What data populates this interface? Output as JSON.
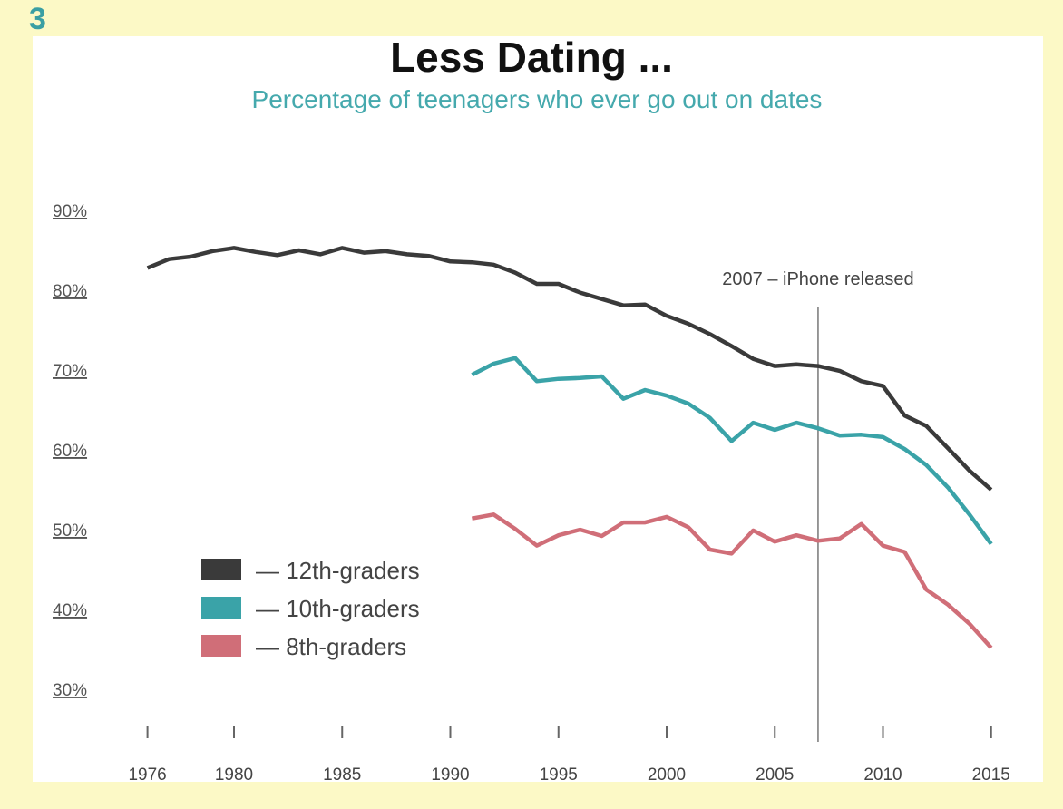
{
  "figure_number": "3",
  "chart_data": {
    "type": "line",
    "title": "Less Dating ...",
    "subtitle": "Percentage of teenagers who ever go out on dates",
    "xlabel": "",
    "ylabel": "",
    "ylim": [
      30,
      90
    ],
    "xlim": [
      1976,
      2015
    ],
    "y_ticks": [
      "90%",
      "80%",
      "70%",
      "60%",
      "50%",
      "40%",
      "30%"
    ],
    "y_tick_values": [
      90,
      80,
      70,
      60,
      50,
      40,
      30
    ],
    "x_ticks": [
      "1976",
      "1980",
      "1985",
      "1990",
      "1995",
      "2000",
      "2005",
      "2010",
      "2015"
    ],
    "grid": false,
    "legend_position": "bottom-left",
    "annotation": {
      "x": 2007,
      "label": "2007 – iPhone released"
    },
    "series": [
      {
        "name": "— 12th-graders",
        "color": "#3a3a3a",
        "x": [
          1976,
          1977,
          1978,
          1979,
          1980,
          1981,
          1982,
          1983,
          1984,
          1985,
          1986,
          1987,
          1988,
          1989,
          1990,
          1991,
          1992,
          1993,
          1994,
          1995,
          1996,
          1997,
          1998,
          1999,
          2000,
          2001,
          2002,
          2003,
          2004,
          2005,
          2006,
          2007,
          2008,
          2009,
          2010,
          2011,
          2012,
          2013,
          2014,
          2015
        ],
        "values": [
          82.8,
          83.9,
          84.2,
          84.9,
          85.3,
          84.8,
          84.4,
          85.0,
          84.5,
          85.3,
          84.7,
          84.9,
          84.5,
          84.3,
          83.6,
          83.5,
          83.2,
          82.2,
          80.8,
          80.8,
          79.7,
          78.9,
          78.1,
          78.2,
          76.8,
          75.8,
          74.5,
          73.0,
          71.4,
          70.5,
          70.7,
          70.5,
          69.9,
          68.6,
          68.0,
          64.3,
          63.0,
          60.2,
          57.4,
          55.0
        ]
      },
      {
        "name": "— 10th-graders",
        "color": "#3aa3a8",
        "x": [
          1991,
          1992,
          1993,
          1994,
          1995,
          1996,
          1997,
          1998,
          1999,
          2000,
          2001,
          2002,
          2003,
          2004,
          2005,
          2006,
          2007,
          2008,
          2009,
          2010,
          2011,
          2012,
          2013,
          2014,
          2015
        ],
        "values": [
          69.4,
          70.8,
          71.5,
          68.6,
          68.9,
          69.0,
          69.2,
          66.4,
          67.5,
          66.8,
          65.8,
          64.0,
          61.1,
          63.4,
          62.5,
          63.4,
          62.7,
          61.8,
          61.9,
          61.6,
          60.1,
          58.1,
          55.3,
          51.9,
          48.2
        ]
      },
      {
        "name": "— 8th-graders",
        "color": "#d06e78",
        "x": [
          1991,
          1992,
          1993,
          1994,
          1995,
          1996,
          1997,
          1998,
          1999,
          2000,
          2001,
          2002,
          2003,
          2004,
          2005,
          2006,
          2007,
          2008,
          2009,
          2010,
          2011,
          2012,
          2013,
          2014,
          2015
        ],
        "values": [
          51.4,
          51.9,
          50.1,
          48.0,
          49.3,
          50.0,
          49.2,
          50.9,
          50.9,
          51.6,
          50.3,
          47.5,
          47.0,
          49.9,
          48.5,
          49.3,
          48.6,
          48.9,
          50.7,
          48.0,
          47.2,
          42.5,
          40.6,
          38.2,
          35.2
        ]
      }
    ]
  }
}
